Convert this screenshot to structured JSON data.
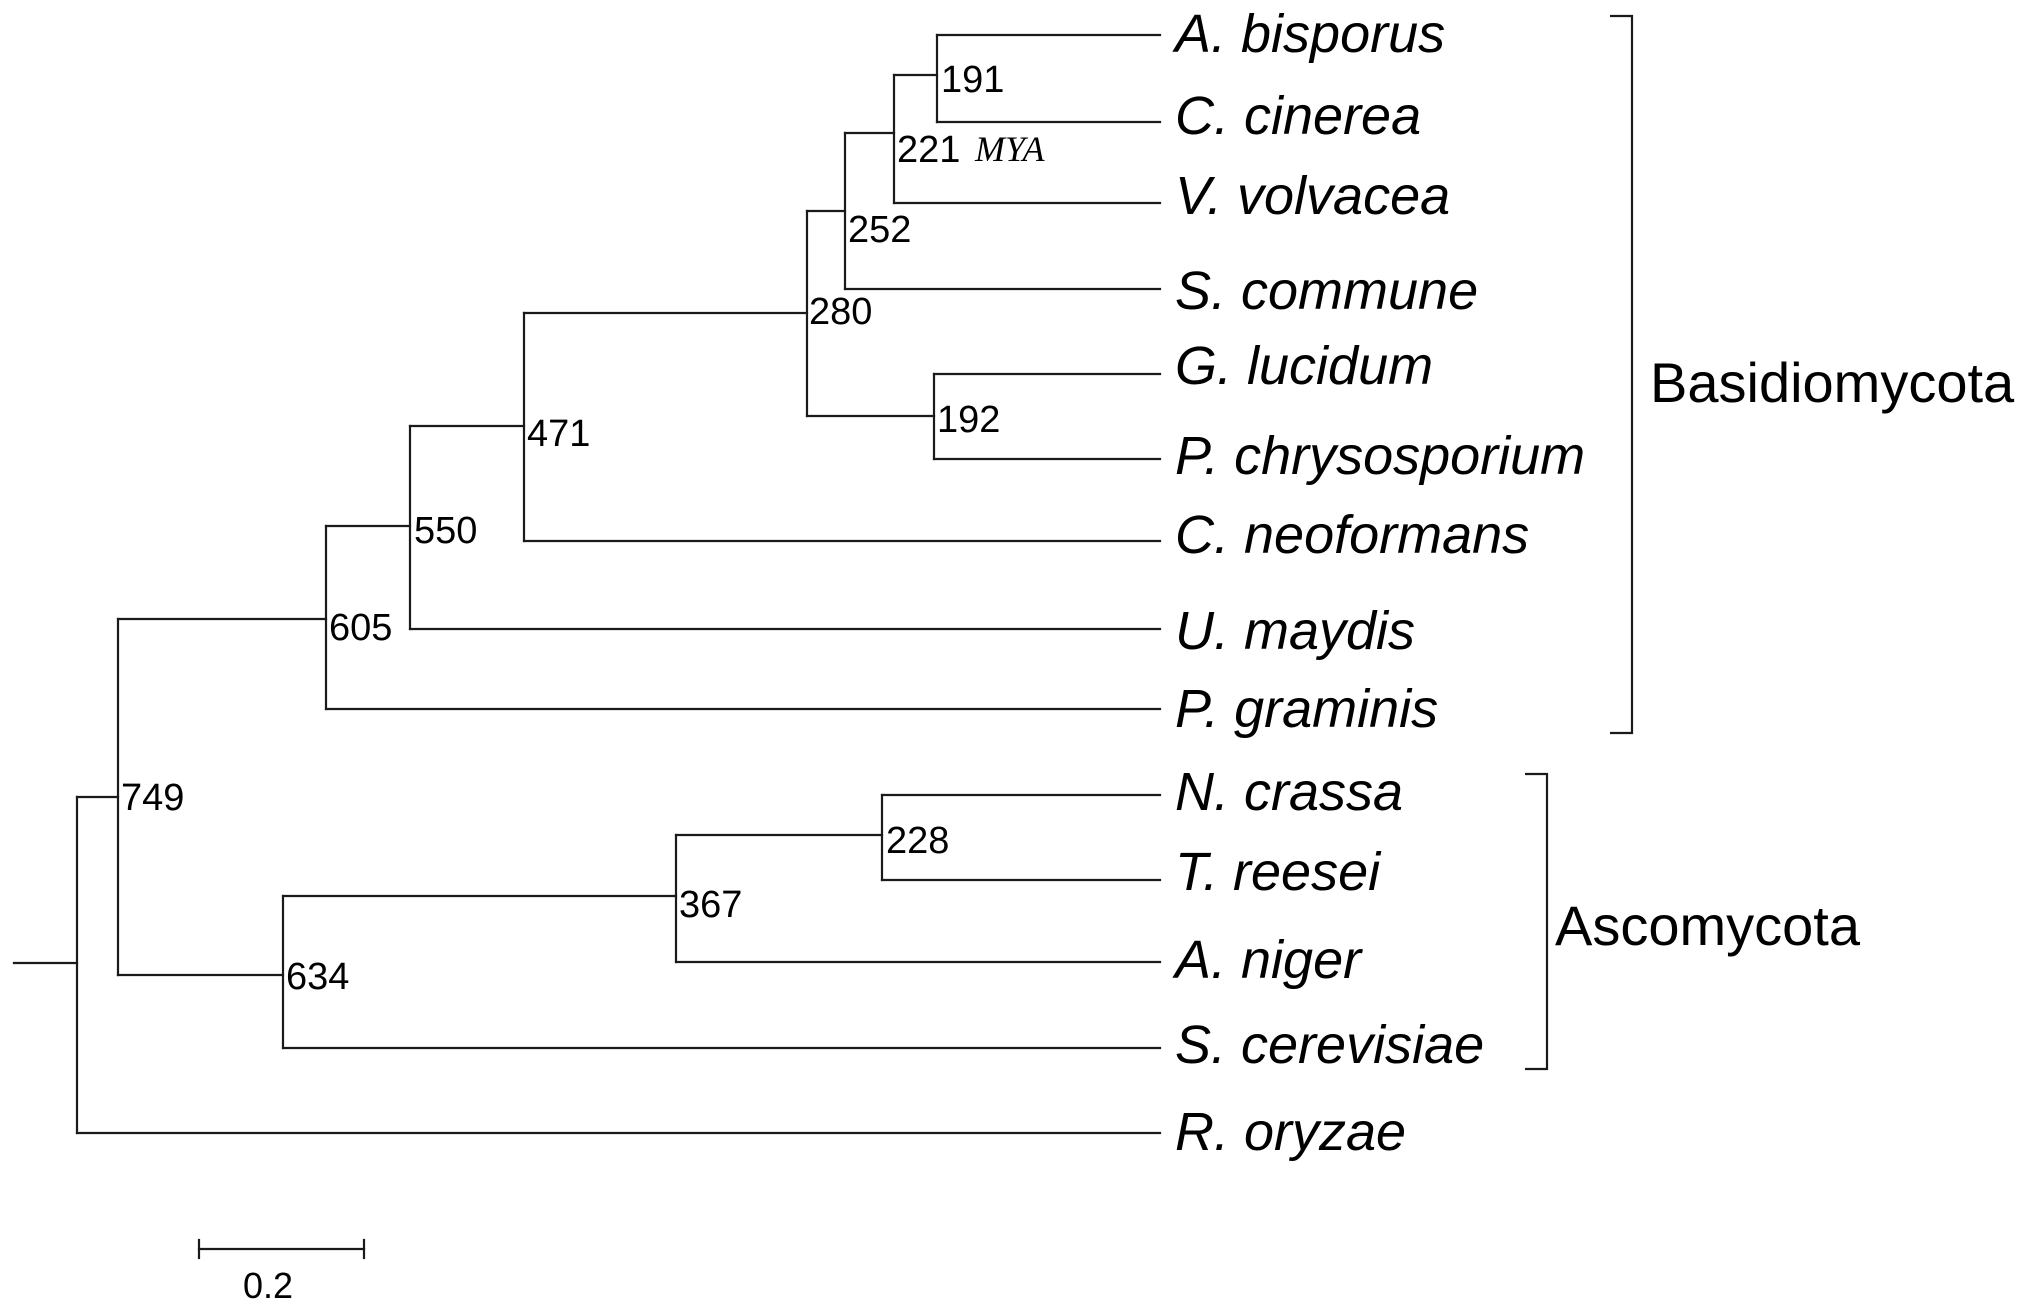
{
  "tree": {
    "taxa": [
      "A. bisporus",
      "C. cinerea",
      "V. volvacea",
      "S. commune",
      "G. lucidum",
      "P. chrysosporium",
      "C. neoformans",
      "U. maydis",
      "P. graminis",
      "N. crassa",
      "T. reesei",
      "A. niger",
      "S. cerevisiae",
      "R. oryzae"
    ],
    "node_ages": {
      "agaricales": "191",
      "agaricales_plus_volvariella": "221",
      "agaricomycetes_core": "252",
      "agaricomycetes": "280",
      "polyporales": "192",
      "agaricomycotina": "471",
      "ustilago_clade": "550",
      "basidiomycota": "605",
      "dikarya": "749",
      "ascomycota": "634",
      "pezizomycotina": "367",
      "sordariomycetes": "228"
    },
    "age_unit": "MYA"
  },
  "groups": {
    "basidiomycota": "Basidiomycota",
    "ascomycota": "Ascomycota"
  },
  "scale_bar": {
    "label": "0.2"
  }
}
